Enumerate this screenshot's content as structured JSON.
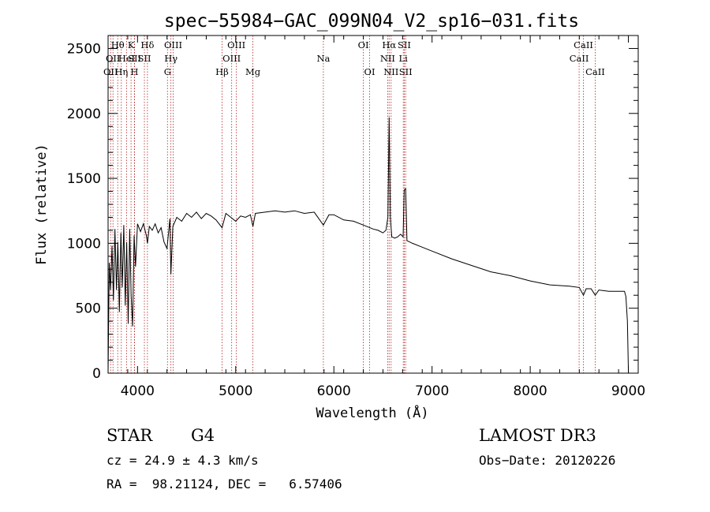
{
  "chart_data": {
    "type": "line",
    "title": "spec−55984−GAC_099N04_V2_sp16−031.fits",
    "xlabel": "Wavelength (Å)",
    "ylabel": "Flux (relative)",
    "xlim": [
      3700,
      9100
    ],
    "ylim": [
      0,
      2600
    ],
    "xticks": [
      4000,
      5000,
      6000,
      7000,
      8000,
      9000
    ],
    "yticks": [
      0,
      500,
      1000,
      1500,
      2000,
      2500
    ],
    "grid": false,
    "series": [
      {
        "name": "spectrum",
        "x": [
          3700,
          3712,
          3725,
          3740,
          3755,
          3770,
          3785,
          3800,
          3815,
          3830,
          3845,
          3860,
          3875,
          3890,
          3905,
          3920,
          3935,
          3950,
          3965,
          3980,
          4000,
          4030,
          4060,
          4090,
          4101,
          4120,
          4150,
          4180,
          4210,
          4240,
          4270,
          4300,
          4330,
          4340,
          4360,
          4400,
          4450,
          4500,
          4550,
          4600,
          4650,
          4700,
          4750,
          4800,
          4861,
          4900,
          4950,
          5000,
          5050,
          5100,
          5150,
          5175,
          5200,
          5300,
          5400,
          5500,
          5600,
          5700,
          5800,
          5893,
          5950,
          6000,
          6100,
          6200,
          6300,
          6400,
          6450,
          6500,
          6530,
          6550,
          6563,
          6575,
          6590,
          6620,
          6650,
          6680,
          6705,
          6717,
          6731,
          6745,
          6800,
          6900,
          7000,
          7200,
          7400,
          7600,
          7800,
          8000,
          8200,
          8400,
          8500,
          8542,
          8570,
          8620,
          8662,
          8700,
          8800,
          8900,
          8960,
          8975,
          8990,
          9000
        ],
        "values": [
          0,
          850,
          640,
          980,
          560,
          1110,
          640,
          1010,
          470,
          1080,
          660,
          1140,
          520,
          1010,
          380,
          1110,
          600,
          360,
          1060,
          820,
          1150,
          1090,
          1150,
          1060,
          1000,
          1130,
          1100,
          1150,
          1080,
          1120,
          1010,
          960,
          1190,
          760,
          1130,
          1200,
          1170,
          1230,
          1200,
          1240,
          1190,
          1230,
          1210,
          1180,
          1120,
          1230,
          1200,
          1170,
          1210,
          1200,
          1220,
          1130,
          1230,
          1240,
          1250,
          1240,
          1250,
          1230,
          1240,
          1140,
          1220,
          1220,
          1180,
          1170,
          1140,
          1110,
          1100,
          1080,
          1100,
          1200,
          1970,
          1200,
          1050,
          1040,
          1050,
          1070,
          1050,
          1410,
          1420,
          1020,
          1000,
          970,
          940,
          880,
          830,
          780,
          750,
          710,
          680,
          670,
          660,
          600,
          650,
          650,
          600,
          640,
          630,
          630,
          630,
          590,
          400,
          0
        ]
      }
    ],
    "lines": [
      {
        "wl": 3726,
        "label": "OII",
        "row": 3
      },
      {
        "wl": 3750,
        "label": "OII",
        "row": 2
      },
      {
        "wl": 3798,
        "label": "Hθ",
        "row": 1
      },
      {
        "wl": 3835,
        "label": "Hη",
        "row": 3
      },
      {
        "wl": 3889,
        "label": "HeI",
        "row": 2
      },
      {
        "wl": 3934,
        "label": "K",
        "row": 1
      },
      {
        "wl": 3968,
        "label": "H",
        "row": 3
      },
      {
        "wl": 3970,
        "label": "SII",
        "row": 2
      },
      {
        "wl": 4101,
        "label": "Hδ",
        "row": 1
      },
      {
        "wl": 4070,
        "label": "SII",
        "row": 2
      },
      {
        "wl": 4305,
        "label": "G",
        "row": 3
      },
      {
        "wl": 4340,
        "label": "Hγ",
        "row": 2
      },
      {
        "wl": 4363,
        "label": "OIII",
        "row": 1
      },
      {
        "wl": 4861,
        "label": "Hβ",
        "row": 3
      },
      {
        "wl": 4959,
        "label": "OIII",
        "row": 2
      },
      {
        "wl": 5007,
        "label": "OIII",
        "row": 1
      },
      {
        "wl": 5175,
        "label": "Mg",
        "row": 3
      },
      {
        "wl": 5893,
        "label": "Na",
        "row": 2
      },
      {
        "wl": 6300,
        "label": "OI",
        "row": 1
      },
      {
        "wl": 6364,
        "label": "OI",
        "row": 3
      },
      {
        "wl": 6548,
        "label": "NII",
        "row": 2
      },
      {
        "wl": 6563,
        "label": "Hα",
        "row": 1
      },
      {
        "wl": 6583,
        "label": "NII",
        "row": 3
      },
      {
        "wl": 6707,
        "label": "Li",
        "row": 2
      },
      {
        "wl": 6717,
        "label": "SII",
        "row": 1
      },
      {
        "wl": 6731,
        "label": "SII",
        "row": 3
      },
      {
        "wl": 8498,
        "label": "CaII",
        "row": 2
      },
      {
        "wl": 8542,
        "label": "CaII",
        "row": 1
      },
      {
        "wl": 8662,
        "label": "CaII",
        "row": 3
      }
    ]
  },
  "info": {
    "class": "STAR",
    "subclass": "G4",
    "survey": "LAMOST DR3",
    "cz": "cz = 24.9 ± 4.3 km/s",
    "obs_date": "Obs−Date: 20120226",
    "coords": "RA =  98.21124, DEC =   6.57406"
  }
}
